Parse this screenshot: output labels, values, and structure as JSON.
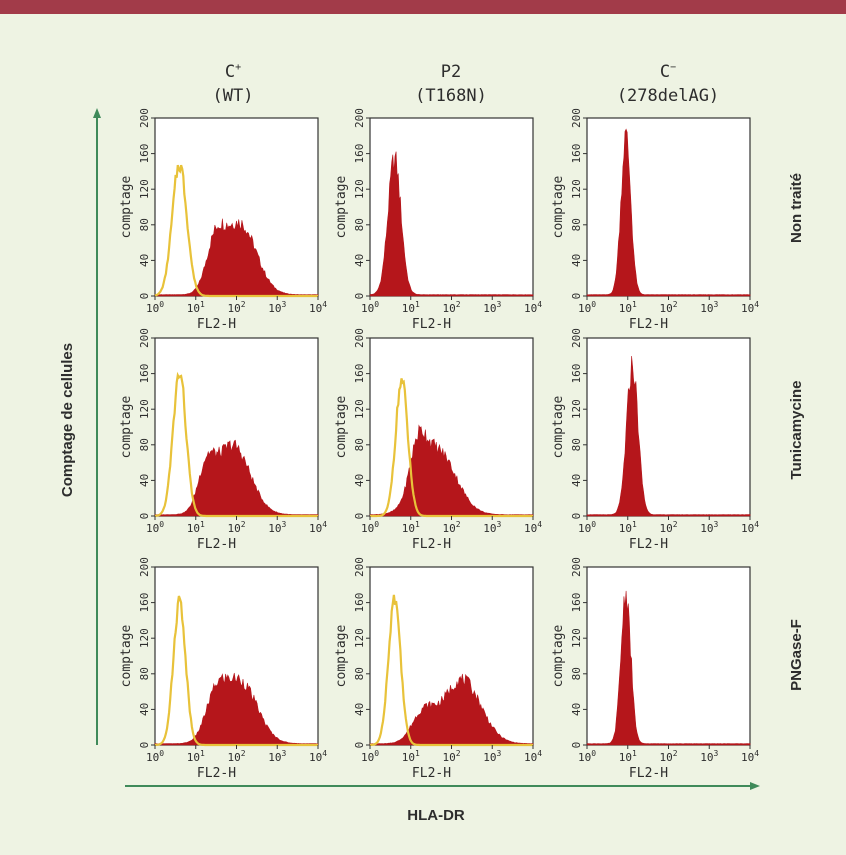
{
  "colors": {
    "treated_fill": "#b5161b",
    "control_line": "#e8c23a",
    "arrow": "#3f8a5a",
    "top_rule": "#a23b49",
    "background": "#eef3e3",
    "panel_bg": "#ffffff"
  },
  "column_headers": [
    {
      "line1_base": "C",
      "line1_sup": "+",
      "line2": "(WT)"
    },
    {
      "line1_base": "P2",
      "line1_sup": "",
      "line2": "(T168N)"
    },
    {
      "line1_base": "C",
      "line1_sup": "−",
      "line2": "(278delAG)"
    }
  ],
  "row_labels": [
    "Non traité",
    "Tunicamycine",
    "PNGase-F"
  ],
  "axis_titles": {
    "y": "Comptage de cellules",
    "x": "HLA-DR"
  },
  "panel_axes": {
    "ylabel": "comptage",
    "xlabel": "FL2-H",
    "yticks": [
      "0",
      "40",
      "80",
      "120",
      "160",
      "200"
    ],
    "xtick_base": "10",
    "xtick_exponents": [
      "0",
      "1",
      "2",
      "3",
      "4"
    ]
  },
  "chart_data": {
    "type": "area",
    "layout": "3x3 grid of flow cytometry histograms",
    "xscale": "log",
    "xlim": [
      1,
      10000
    ],
    "ylim": [
      0,
      200
    ],
    "panels": [
      {
        "row": 0,
        "col": 0,
        "control": {
          "peak_x": 4,
          "peak_y": 148,
          "width": 0.18
        },
        "treated": {
          "peak_x": 120,
          "peak_y": 80,
          "width": 0.4,
          "shoulder": {
            "x": 30,
            "y": 48,
            "width": 0.22
          }
        }
      },
      {
        "row": 0,
        "col": 1,
        "control": null,
        "treated": {
          "peak_x": 4,
          "peak_y": 152,
          "width": 0.16
        }
      },
      {
        "row": 0,
        "col": 2,
        "control": null,
        "treated": {
          "peak_x": 9,
          "peak_y": 178,
          "width": 0.12
        }
      },
      {
        "row": 1,
        "col": 0,
        "control": {
          "peak_x": 4,
          "peak_y": 160,
          "width": 0.16
        },
        "treated": {
          "peak_x": 80,
          "peak_y": 78,
          "width": 0.42,
          "shoulder": {
            "x": 18,
            "y": 42,
            "width": 0.2
          }
        }
      },
      {
        "row": 1,
        "col": 1,
        "control": {
          "peak_x": 6,
          "peak_y": 152,
          "width": 0.15
        },
        "treated": {
          "peak_x": 45,
          "peak_y": 72,
          "width": 0.45,
          "shoulder": {
            "x": 15,
            "y": 50,
            "width": 0.2
          }
        }
      },
      {
        "row": 1,
        "col": 2,
        "control": null,
        "treated": {
          "peak_x": 13,
          "peak_y": 168,
          "width": 0.14
        }
      },
      {
        "row": 2,
        "col": 0,
        "control": {
          "peak_x": 4,
          "peak_y": 162,
          "width": 0.15
        },
        "treated": {
          "peak_x": 120,
          "peak_y": 70,
          "width": 0.42,
          "shoulder": {
            "x": 30,
            "y": 40,
            "width": 0.25
          }
        }
      },
      {
        "row": 2,
        "col": 1,
        "control": {
          "peak_x": 4,
          "peak_y": 165,
          "width": 0.15
        },
        "treated": {
          "peak_x": 180,
          "peak_y": 72,
          "width": 0.46,
          "shoulder": {
            "x": 20,
            "y": 32,
            "width": 0.28
          }
        }
      },
      {
        "row": 2,
        "col": 2,
        "control": null,
        "treated": {
          "peak_x": 9,
          "peak_y": 170,
          "width": 0.12
        }
      }
    ]
  }
}
